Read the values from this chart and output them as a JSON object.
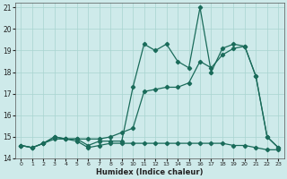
{
  "xlabel": "Humidex (Indice chaleur)",
  "xlim": [
    -0.5,
    23.5
  ],
  "ylim": [
    14,
    21.2
  ],
  "yticks": [
    14,
    15,
    16,
    17,
    18,
    19,
    20,
    21
  ],
  "xticks": [
    0,
    1,
    2,
    3,
    4,
    5,
    6,
    7,
    8,
    9,
    10,
    11,
    12,
    13,
    14,
    15,
    16,
    17,
    18,
    19,
    20,
    21,
    22,
    23
  ],
  "bg_color": "#ceeaea",
  "grid_color": "#a8d4d0",
  "line_color": "#1a6b5a",
  "line1_y": [
    14.6,
    14.5,
    14.7,
    15.0,
    14.9,
    14.9,
    14.6,
    14.8,
    14.8,
    14.8,
    17.3,
    19.3,
    19.0,
    19.3,
    18.5,
    18.2,
    21.0,
    18.0,
    19.1,
    19.3,
    19.2,
    17.8,
    15.0,
    14.5
  ],
  "line2_y": [
    14.6,
    14.5,
    14.7,
    15.0,
    14.9,
    14.9,
    14.9,
    14.9,
    15.0,
    15.2,
    15.4,
    17.1,
    17.2,
    17.3,
    17.3,
    17.5,
    18.5,
    18.2,
    18.8,
    19.1,
    19.2,
    17.8,
    15.0,
    14.5
  ],
  "line3_y": [
    14.6,
    14.5,
    14.7,
    14.9,
    14.9,
    14.8,
    14.5,
    14.6,
    14.7,
    14.7,
    14.7,
    14.7,
    14.7,
    14.7,
    14.7,
    14.7,
    14.7,
    14.7,
    14.7,
    14.6,
    14.6,
    14.5,
    14.4,
    14.4
  ]
}
